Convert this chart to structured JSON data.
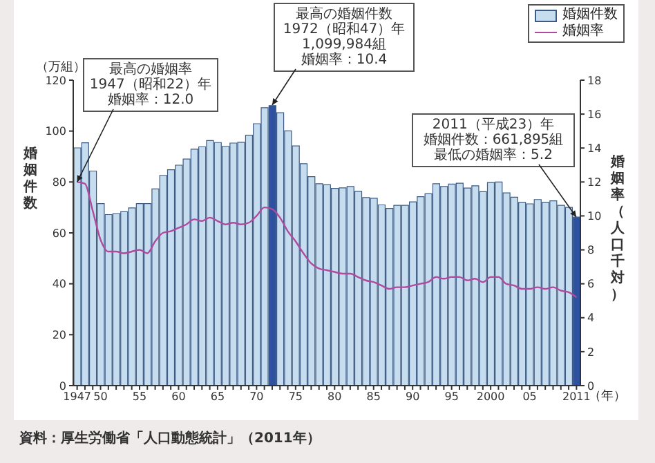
{
  "chart_data": {
    "type": "bar",
    "categories": [
      "1947",
      null,
      null,
      "50",
      null,
      null,
      null,
      null,
      "55",
      null,
      null,
      null,
      null,
      "60",
      null,
      null,
      null,
      null,
      "65",
      null,
      null,
      null,
      null,
      "70",
      null,
      null,
      null,
      null,
      "75",
      null,
      null,
      null,
      null,
      "80",
      null,
      null,
      null,
      null,
      "85",
      null,
      null,
      null,
      null,
      "90",
      null,
      null,
      null,
      null,
      "95",
      null,
      null,
      null,
      null,
      "2000",
      null,
      null,
      null,
      null,
      "05",
      null,
      null,
      null,
      null,
      null,
      "2011"
    ],
    "series": [
      {
        "name": "婚姻件数",
        "color": "#c6ddf0",
        "colors": [
          "#c6ddf0",
          "#c6ddf0",
          "#c6ddf0",
          "#c6ddf0",
          "#c6ddf0",
          "#c6ddf0",
          "#c6ddf0",
          "#c6ddf0",
          "#c6ddf0",
          "#c6ddf0",
          "#c6ddf0",
          "#c6ddf0",
          "#c6ddf0",
          "#c6ddf0",
          "#c6ddf0",
          "#c6ddf0",
          "#c6ddf0",
          "#c6ddf0",
          "#c6ddf0",
          "#c6ddf0",
          "#c6ddf0",
          "#c6ddf0",
          "#c6ddf0",
          "#c6ddf0",
          "#c6ddf0",
          "#2f52a0",
          "#c6ddf0",
          "#c6ddf0",
          "#c6ddf0",
          "#c6ddf0",
          "#c6ddf0",
          "#c6ddf0",
          "#c6ddf0",
          "#c6ddf0",
          "#c6ddf0",
          "#c6ddf0",
          "#c6ddf0",
          "#c6ddf0",
          "#c6ddf0",
          "#c6ddf0",
          "#c6ddf0",
          "#c6ddf0",
          "#c6ddf0",
          "#c6ddf0",
          "#c6ddf0",
          "#c6ddf0",
          "#c6ddf0",
          "#c6ddf0",
          "#c6ddf0",
          "#c6ddf0",
          "#c6ddf0",
          "#c6ddf0",
          "#c6ddf0",
          "#c6ddf0",
          "#c6ddf0",
          "#c6ddf0",
          "#c6ddf0",
          "#c6ddf0",
          "#c6ddf0",
          "#c6ddf0",
          "#c6ddf0",
          "#c6ddf0",
          "#c6ddf0",
          "#c6ddf0",
          "#2f52a0"
        ],
        "values": [
          93.4,
          95.4,
          84.3,
          71.5,
          67.2,
          67.6,
          68.3,
          69.8,
          71.5,
          71.5,
          77.3,
          82.6,
          84.8,
          86.6,
          89.0,
          92.9,
          93.8,
          96.3,
          95.5,
          94.0,
          95.3,
          95.6,
          98.4,
          102.9,
          109.2,
          110.0,
          107.2,
          100.1,
          94.2,
          87.2,
          82.1,
          79.3,
          78.9,
          77.5,
          77.7,
          78.2,
          76.3,
          73.9,
          73.6,
          71.0,
          69.6,
          70.8,
          70.8,
          72.2,
          74.2,
          75.4,
          79.3,
          78.2,
          79.2,
          79.5,
          77.6,
          78.5,
          76.2,
          79.8,
          80.0,
          75.7,
          74.0,
          72.0,
          71.4,
          73.1,
          72.0,
          72.6,
          70.8,
          70.0,
          66.2
        ]
      },
      {
        "name": "婚姻率",
        "type": "line",
        "axis": "y2",
        "color": "#b04a9e",
        "values": [
          12.0,
          11.9,
          10.3,
          8.6,
          7.9,
          7.9,
          7.8,
          7.9,
          8.0,
          7.8,
          8.5,
          9.0,
          9.1,
          9.3,
          9.5,
          9.8,
          9.7,
          9.9,
          9.7,
          9.5,
          9.6,
          9.5,
          9.6,
          10.0,
          10.5,
          10.4,
          9.9,
          9.1,
          8.5,
          7.8,
          7.2,
          6.9,
          6.8,
          6.7,
          6.6,
          6.6,
          6.4,
          6.2,
          6.1,
          5.9,
          5.7,
          5.8,
          5.8,
          5.9,
          6.0,
          6.1,
          6.4,
          6.3,
          6.4,
          6.4,
          6.2,
          6.3,
          6.1,
          6.4,
          6.4,
          6.0,
          5.9,
          5.7,
          5.7,
          5.8,
          5.7,
          5.8,
          5.6,
          5.5,
          5.2
        ]
      }
    ],
    "ylabel": "婚姻件数",
    "y2label": "婚姻率（人口千対）",
    "ylim": [
      0,
      120
    ],
    "yticks": [
      0,
      20,
      40,
      60,
      80,
      100,
      120
    ],
    "y2lim": [
      0,
      18
    ],
    "y2ticks": [
      0,
      2,
      4,
      6,
      8,
      10,
      12,
      14,
      16,
      18
    ],
    "legend": "top right",
    "grid": false,
    "marker": "none",
    "line_style": "solid",
    "annotations": [
      "（万組）",
      "最高の婚姻率",
      {
        "text": "1947（昭和22）年",
        "x": "1947",
        "y": 80
      },
      "婚姻率：12.0",
      "最高の婚姻件数",
      "1972（昭和47）年",
      "1,099,984組",
      "婚姻率：10.4",
      "2011（平成23）年",
      "婚姻件数：661,895組",
      "最低の婚姻率：5.2",
      "（年）",
      "資料：厚生労働省「人口動態統計」（2011年）"
    ]
  }
}
